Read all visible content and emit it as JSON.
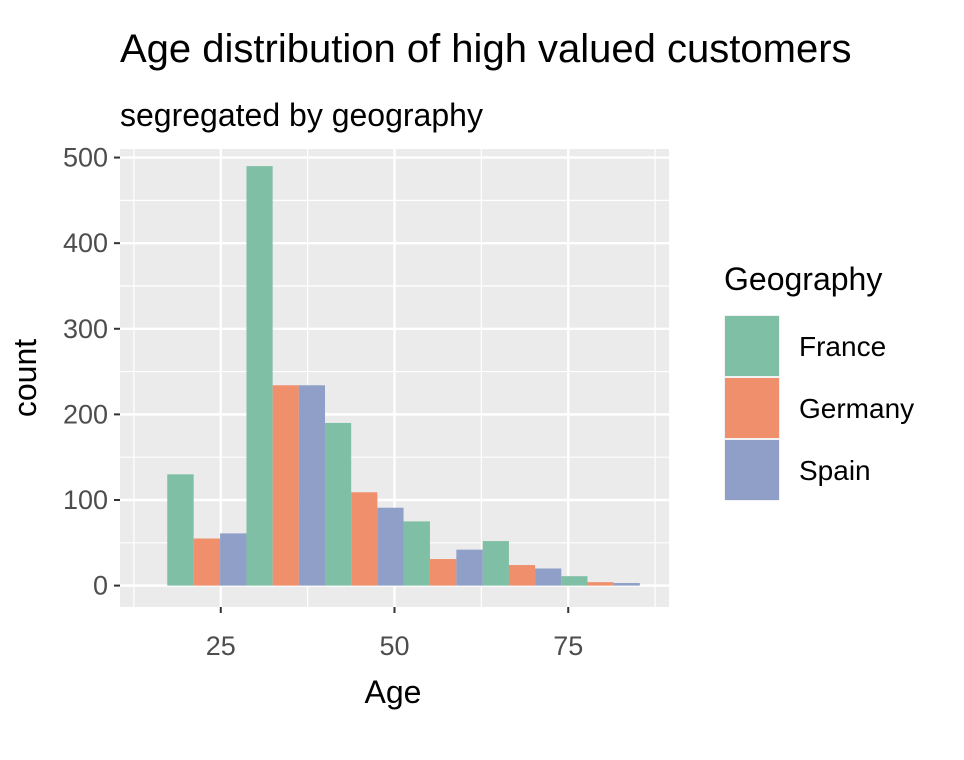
{
  "chart_data": {
    "type": "bar",
    "title": "Age distribution of high valued customers",
    "subtitle": "segregated by geography",
    "xlabel": "Age",
    "ylabel": "count",
    "xlim": [
      10.5,
      89.5
    ],
    "ylim": [
      -25,
      510
    ],
    "x_ticks": [
      25,
      50,
      75
    ],
    "y_ticks": [
      0,
      100,
      200,
      300,
      400,
      500
    ],
    "grid": true,
    "legend": {
      "title": "Geography",
      "position": "right",
      "entries": [
        "France",
        "Germany",
        "Spain"
      ]
    },
    "bins": [
      {
        "x_start": 17.3,
        "x_end": 28.7
      },
      {
        "x_start": 28.7,
        "x_end": 40.0
      },
      {
        "x_start": 40.0,
        "x_end": 51.3
      },
      {
        "x_start": 51.3,
        "x_end": 62.7
      },
      {
        "x_start": 62.7,
        "x_end": 74.0
      },
      {
        "x_start": 74.0,
        "x_end": 85.3
      }
    ],
    "series": [
      {
        "name": "France",
        "color": "#7fbfa6",
        "values": [
          130,
          490,
          190,
          75,
          52,
          11
        ]
      },
      {
        "name": "Germany",
        "color": "#ef8f6b",
        "values": [
          55,
          234,
          109,
          31,
          24,
          4
        ]
      },
      {
        "name": "Spain",
        "color": "#909fc7",
        "values": [
          61,
          234,
          91,
          42,
          20,
          3
        ]
      }
    ]
  }
}
